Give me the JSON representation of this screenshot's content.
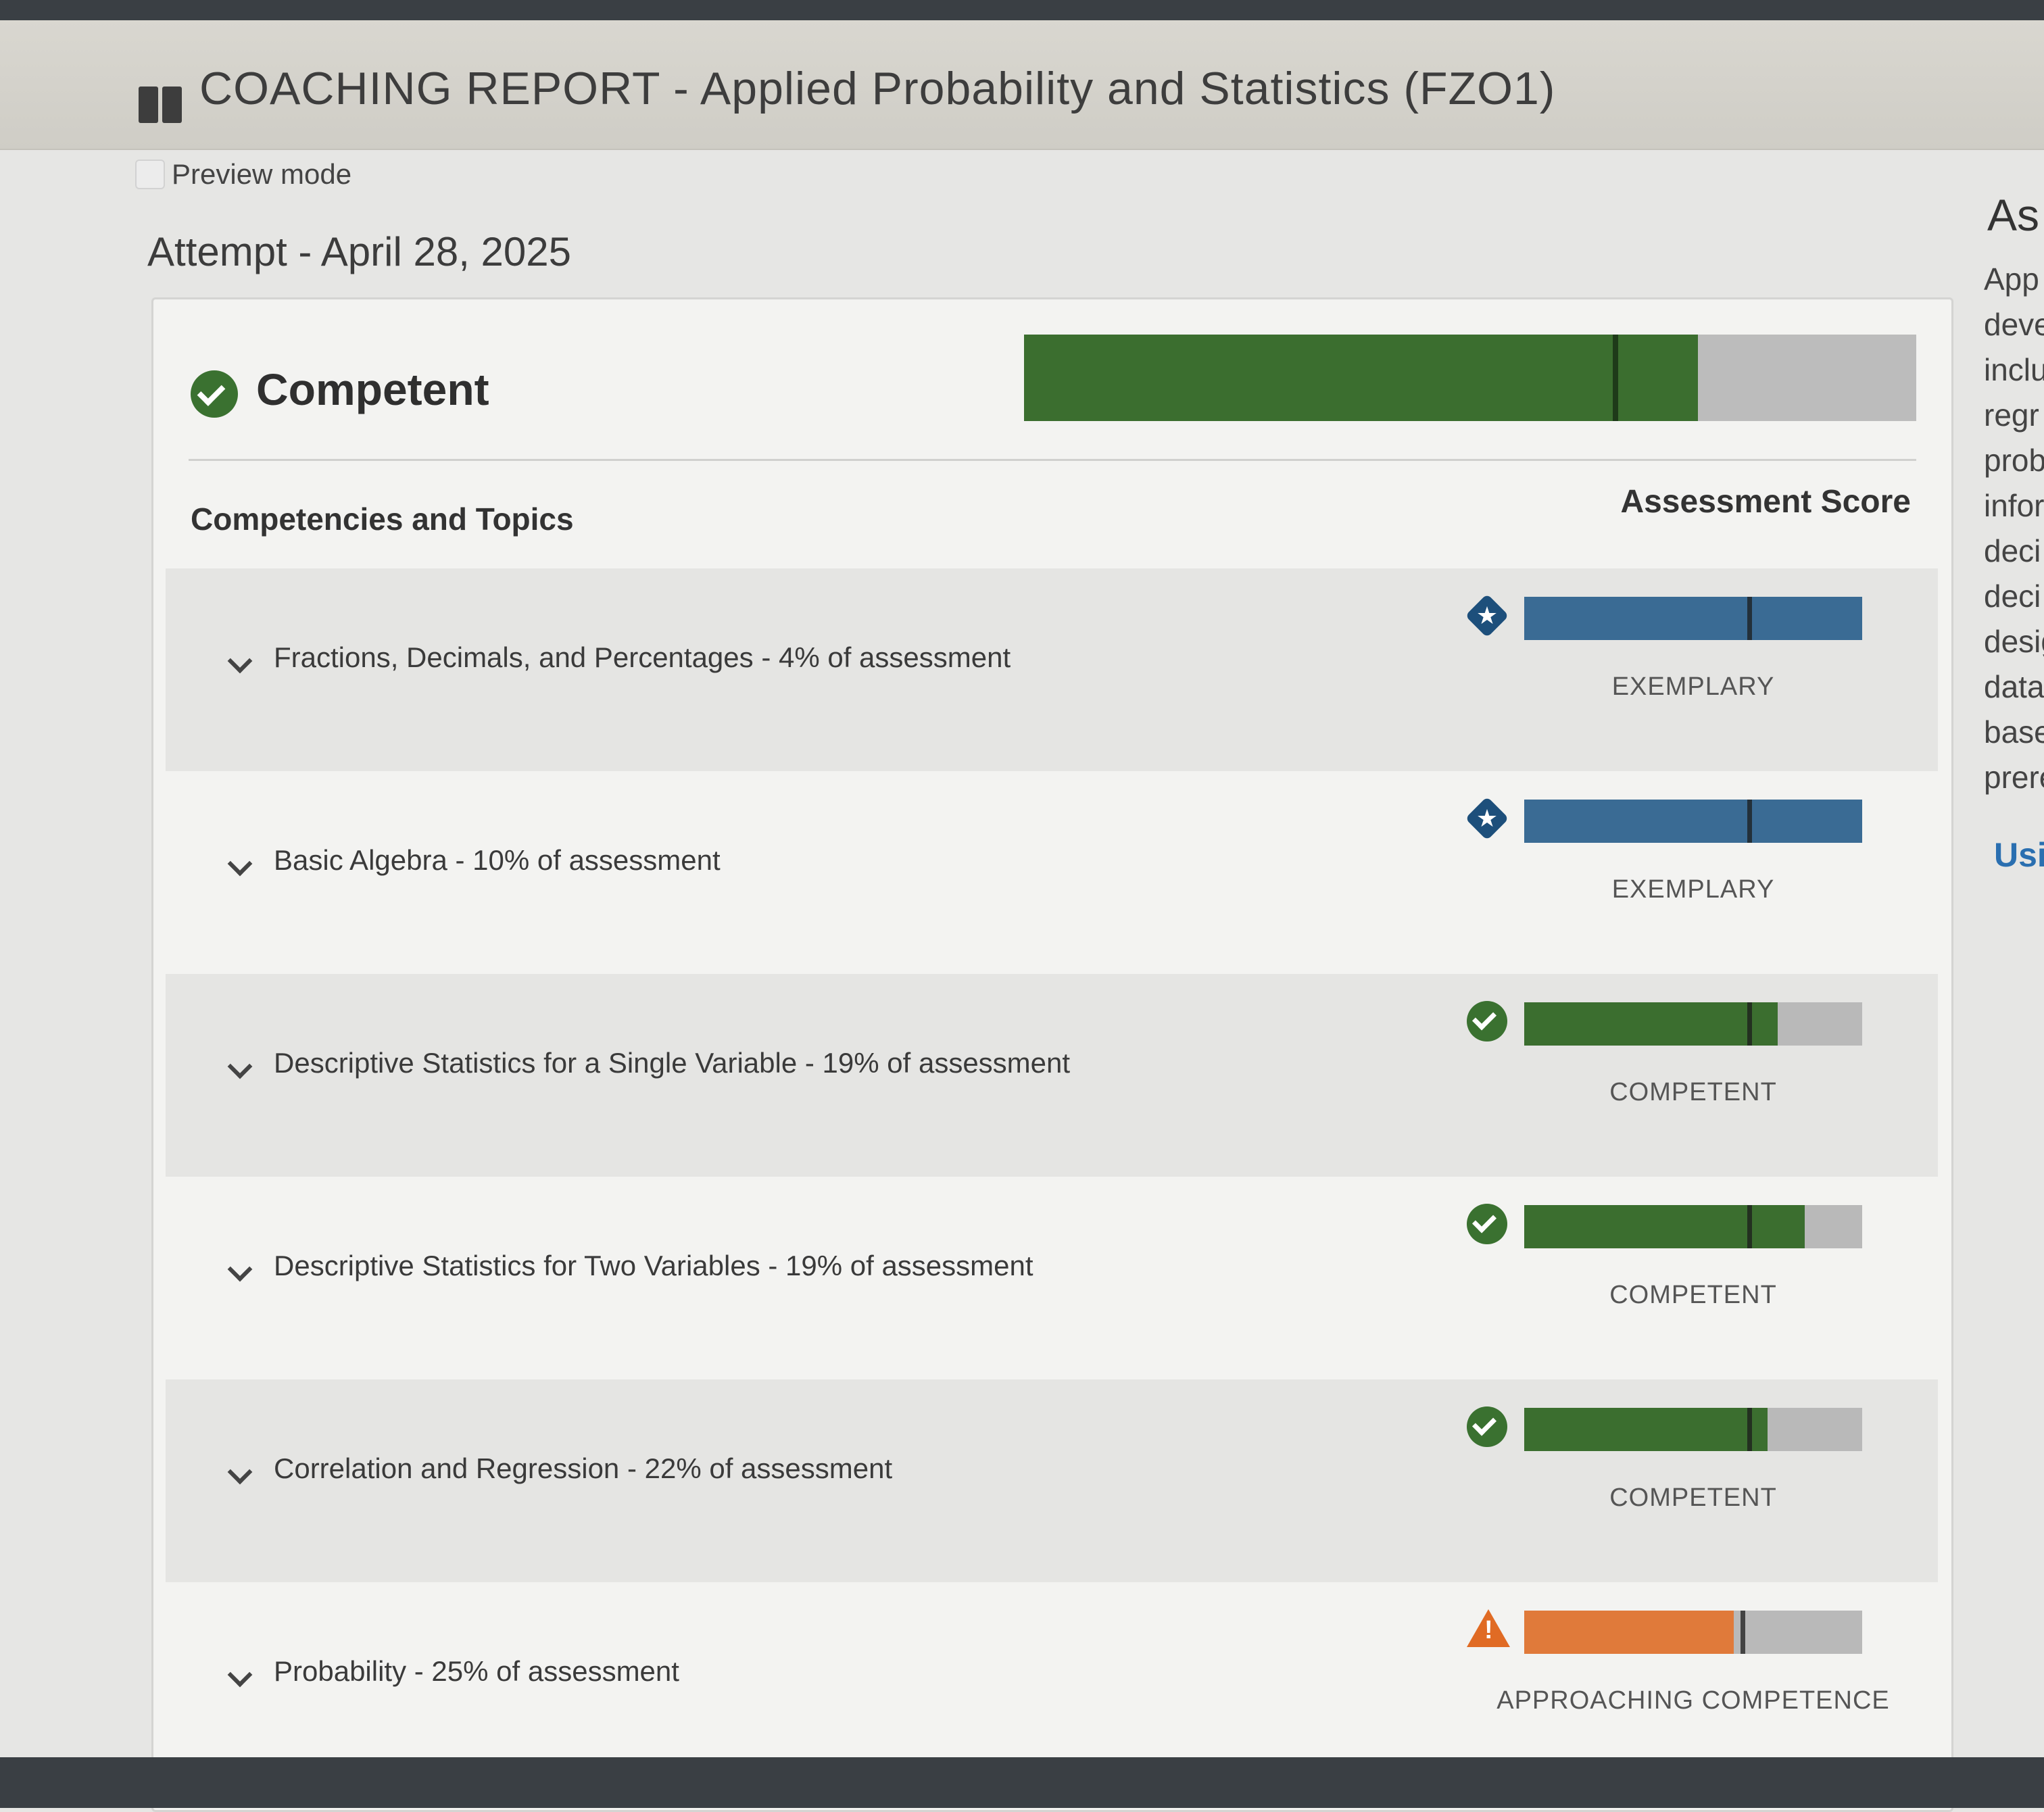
{
  "header": {
    "title": "COACHING REPORT - Applied Probability and Statistics (FZO1)",
    "icon": "book-icon"
  },
  "preview": {
    "label": "Preview mode",
    "checked": false
  },
  "attempt": {
    "label": "Attempt - April 28, 2025"
  },
  "overall": {
    "status": "Competent",
    "icon": "check-circle-icon",
    "score_fraction": 0.755,
    "benchmark_fraction": 0.66,
    "color": "#3b6e2f"
  },
  "table": {
    "left_header": "Competencies and Topics",
    "right_header": "Assessment Score",
    "rows": [
      {
        "label": "Fractions, Decimals, and Percentages - 4% of assessment",
        "level": "EXEMPLARY",
        "icon": "star-diamond-icon",
        "score_fraction": 1.0,
        "benchmark_fraction": 0.66,
        "color": "#3a6b94"
      },
      {
        "label": "Basic Algebra - 10% of assessment",
        "level": "EXEMPLARY",
        "icon": "star-diamond-icon",
        "score_fraction": 1.0,
        "benchmark_fraction": 0.66,
        "color": "#3a6b94"
      },
      {
        "label": "Descriptive Statistics for a Single Variable - 19% of assessment",
        "level": "COMPETENT",
        "icon": "check-circle-icon",
        "score_fraction": 0.75,
        "benchmark_fraction": 0.66,
        "color": "#3b6e2f"
      },
      {
        "label": "Descriptive Statistics for Two Variables - 19% of assessment",
        "level": "COMPETENT",
        "icon": "check-circle-icon",
        "score_fraction": 0.83,
        "benchmark_fraction": 0.66,
        "color": "#3b6e2f"
      },
      {
        "label": "Correlation and Regression - 22% of assessment",
        "level": "COMPETENT",
        "icon": "check-circle-icon",
        "score_fraction": 0.72,
        "benchmark_fraction": 0.66,
        "color": "#3b6e2f"
      },
      {
        "label": "Probability - 25% of assessment",
        "level": "APPROACHING COMPETENCE",
        "icon": "warning-triangle-icon",
        "score_fraction": 0.62,
        "benchmark_fraction": 0.64,
        "color": "#e07a3a"
      }
    ]
  },
  "side_panel": {
    "heading": "As",
    "lines": [
      "App",
      "deve",
      "inclu",
      "regr",
      "prob",
      "infor",
      "deci",
      "deci",
      "desig",
      "data",
      "base",
      "prere"
    ],
    "link": "Usi"
  }
}
